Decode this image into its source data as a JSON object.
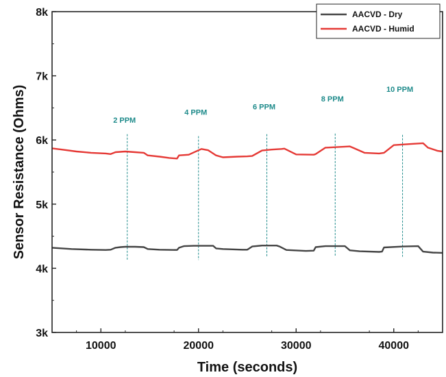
{
  "chart_data": {
    "type": "line",
    "xlabel": "Time (seconds)",
    "ylabel": "Sensor Resistance (Ohms)",
    "xlim": [
      5000,
      45000
    ],
    "ylim": [
      3000,
      8000
    ],
    "x_ticks": [
      {
        "value": 10000,
        "label": "10000"
      },
      {
        "value": 20000,
        "label": "20000"
      },
      {
        "value": 30000,
        "label": "30000"
      },
      {
        "value": 40000,
        "label": "40000"
      }
    ],
    "y_ticks": [
      {
        "value": 3000,
        "label": "3k"
      },
      {
        "value": 4000,
        "label": "4k"
      },
      {
        "value": 5000,
        "label": "5k"
      },
      {
        "value": 6000,
        "label": "6k"
      },
      {
        "value": 7000,
        "label": "7k"
      },
      {
        "value": 8000,
        "label": "8k"
      }
    ],
    "grid": false,
    "legend_position": "top-right",
    "series": [
      {
        "name": "AACVD - Dry",
        "color": "#444444",
        "x": [
          5000,
          7000,
          9000,
          10500,
          11000,
          11500,
          12000,
          12500,
          13500,
          14400,
          14800,
          16000,
          17800,
          18000,
          18500,
          19500,
          20500,
          21500,
          21800,
          22500,
          24500,
          25000,
          25500,
          26500,
          28000,
          28300,
          29000,
          31000,
          31800,
          32000,
          33000,
          35000,
          35500,
          36500,
          38500,
          38800,
          39000,
          41000,
          42500,
          43000,
          44000,
          45000
        ],
        "y": [
          4320,
          4300,
          4290,
          4285,
          4290,
          4320,
          4330,
          4335,
          4335,
          4330,
          4300,
          4290,
          4285,
          4320,
          4345,
          4350,
          4350,
          4350,
          4310,
          4300,
          4290,
          4290,
          4340,
          4355,
          4355,
          4340,
          4285,
          4270,
          4275,
          4330,
          4345,
          4345,
          4280,
          4265,
          4255,
          4260,
          4325,
          4340,
          4345,
          4260,
          4245,
          4240
        ]
      },
      {
        "name": "AACVD - Humid",
        "color": "#e53935",
        "x": [
          5000,
          6000,
          7500,
          9000,
          10500,
          11000,
          11500,
          12500,
          13500,
          14400,
          14800,
          16000,
          17000,
          17800,
          18000,
          19000,
          20000,
          20300,
          21000,
          21800,
          22500,
          24000,
          25000,
          25500,
          26500,
          27500,
          28500,
          28800,
          30000,
          31800,
          32000,
          33000,
          35500,
          35800,
          37000,
          38500,
          39000,
          40000,
          42000,
          43000,
          43500,
          44500,
          45000
        ],
        "y": [
          5870,
          5850,
          5820,
          5800,
          5790,
          5780,
          5810,
          5820,
          5810,
          5800,
          5760,
          5740,
          5720,
          5710,
          5760,
          5770,
          5840,
          5860,
          5840,
          5760,
          5730,
          5740,
          5745,
          5750,
          5835,
          5850,
          5860,
          5865,
          5775,
          5770,
          5780,
          5880,
          5900,
          5880,
          5800,
          5790,
          5800,
          5920,
          5940,
          5950,
          5880,
          5830,
          5820
        ]
      }
    ],
    "annotations": [
      {
        "label": "2 PPM",
        "x": 12700,
        "y_label": 6270
      },
      {
        "label": "4 PPM",
        "x": 20000,
        "y_label": 6390
      },
      {
        "label": "6 PPM",
        "x": 27000,
        "y_label": 6480
      },
      {
        "label": "8 PPM",
        "x": 34000,
        "y_label": 6600
      },
      {
        "label": "10 PPM",
        "x": 40900,
        "y_label": 6750
      }
    ],
    "marker_lines": [
      {
        "x": 12700,
        "y_top": 6090,
        "y_bottom": 4120
      },
      {
        "x": 20000,
        "y_top": 6060,
        "y_bottom": 4130
      },
      {
        "x": 27000,
        "y_top": 6090,
        "y_bottom": 4180
      },
      {
        "x": 34000,
        "y_top": 6100,
        "y_bottom": 4190
      },
      {
        "x": 40900,
        "y_top": 6080,
        "y_bottom": 4180
      }
    ],
    "marker_line_color": "#1d8a8a"
  }
}
